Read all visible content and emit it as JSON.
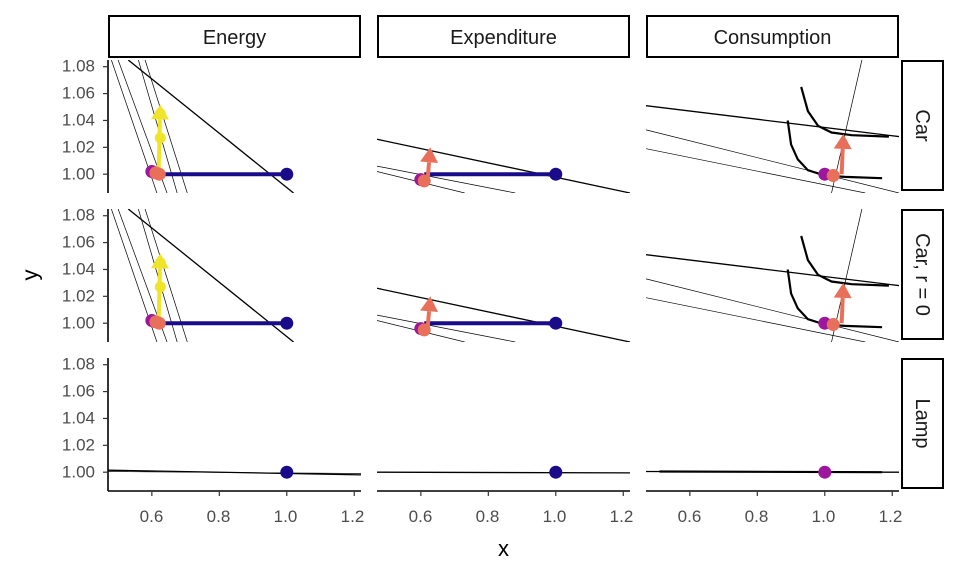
{
  "colors": {
    "navy": "#1a0b8a",
    "purple": "#9c179e",
    "salmon": "#e8705a",
    "yellow": "#f0e42a"
  },
  "chart_data": {
    "type": "scatter",
    "xlabel": "x",
    "ylabel": "y",
    "xlim": [
      0.47,
      1.22
    ],
    "ylim": [
      0.986,
      1.085
    ],
    "x_ticks": [
      0.6,
      0.8,
      1.0,
      1.2
    ],
    "x_tick_labels": [
      "0.6",
      "0.8",
      "1.0",
      "1.2"
    ],
    "y_ticks": [
      1.0,
      1.02,
      1.04,
      1.06,
      1.08
    ],
    "y_tick_labels": [
      "1.00",
      "1.02",
      "1.04",
      "1.06",
      "1.08"
    ],
    "grid": false,
    "facet_columns": [
      "Energy",
      "Expenditure",
      "Consumption"
    ],
    "facet_rows": [
      "Car",
      "Car, r = 0",
      "Lamp"
    ],
    "panels": [
      {
        "col": "Energy",
        "row": "Car",
        "lines": [
          [
            [
              0.53,
              1.085
            ],
            [
              1.02,
              0.986
            ]
          ],
          [
            [
              0.48,
              1.085
            ],
            [
              0.615,
              0.986
            ]
          ],
          [
            [
              0.56,
              1.085
            ],
            [
              0.675,
              0.986
            ]
          ],
          [
            [
              0.58,
              1.085
            ],
            [
              0.705,
              0.986
            ]
          ],
          [
            [
              0.5,
              1.085
            ],
            [
              0.645,
              0.986
            ]
          ]
        ],
        "segments": [
          {
            "from": [
              0.62,
              1.0
            ],
            "to": [
              1.0,
              1.0
            ],
            "color": "navy"
          }
        ],
        "arrows": [
          {
            "from": [
              0.62,
              1.0
            ],
            "to": [
              0.625,
              1.052
            ],
            "color": "yellow"
          }
        ],
        "points": [
          {
            "x": 1.0,
            "y": 1.0,
            "color": "navy"
          },
          {
            "x": 0.6,
            "y": 1.002,
            "color": "purple"
          },
          {
            "x": 0.612,
            "y": 1.001,
            "color": "salmon"
          },
          {
            "x": 0.622,
            "y": 1.0,
            "color": "salmon"
          },
          {
            "x": 0.625,
            "y": 1.027,
            "color": "yellow"
          },
          {
            "x": 0.625,
            "y": 1.045,
            "color": "yellow"
          }
        ]
      },
      {
        "col": "Expenditure",
        "row": "Car",
        "lines": [
          [
            [
              0.47,
              1.026
            ],
            [
              1.22,
              0.986
            ]
          ],
          [
            [
              0.47,
              1.006
            ],
            [
              0.88,
              0.986
            ]
          ],
          [
            [
              0.47,
              1.002
            ],
            [
              0.73,
              0.986
            ]
          ]
        ],
        "segments": [
          {
            "from": [
              0.61,
              1.0
            ],
            "to": [
              1.0,
              1.0
            ],
            "color": "navy"
          }
        ],
        "arrows": [
          {
            "from": [
              0.62,
              0.996
            ],
            "to": [
              0.628,
              1.02
            ],
            "color": "salmon"
          }
        ],
        "points": [
          {
            "x": 1.0,
            "y": 1.0,
            "color": "navy"
          },
          {
            "x": 0.6,
            "y": 0.996,
            "color": "purple"
          },
          {
            "x": 0.61,
            "y": 0.995,
            "color": "salmon"
          }
        ]
      },
      {
        "col": "Consumption",
        "row": "Car",
        "lines": [
          [
            [
              0.47,
              1.051
            ],
            [
              1.22,
              1.028
            ]
          ],
          [
            [
              0.47,
              1.033
            ],
            [
              1.22,
              0.986
            ]
          ],
          [
            [
              0.47,
              1.019
            ],
            [
              1.12,
              0.986
            ]
          ],
          [
            [
              1.02,
              0.986
            ],
            [
              1.11,
              1.085
            ]
          ]
        ],
        "curves": [
          [
            [
              0.93,
              1.065
            ],
            [
              0.95,
              1.047
            ],
            [
              0.98,
              1.036
            ],
            [
              1.02,
              1.031
            ],
            [
              1.08,
              1.029
            ],
            [
              1.19,
              1.028
            ]
          ],
          [
            [
              0.89,
              1.04
            ],
            [
              0.9,
              1.022
            ],
            [
              0.92,
              1.011
            ],
            [
              0.95,
              1.003
            ],
            [
              1.0,
              0.999
            ],
            [
              1.06,
              0.998
            ],
            [
              1.17,
              0.997
            ]
          ]
        ],
        "segments": [],
        "arrows": [
          {
            "from": [
              1.05,
              1.0
            ],
            "to": [
              1.055,
              1.03
            ],
            "color": "salmon"
          }
        ],
        "points": [
          {
            "x": 1.0,
            "y": 1.0,
            "color": "purple"
          },
          {
            "x": 1.025,
            "y": 0.999,
            "color": "salmon"
          }
        ]
      },
      {
        "col": "Energy",
        "row": "Car, r = 0",
        "lines": [
          [
            [
              0.53,
              1.085
            ],
            [
              1.02,
              0.986
            ]
          ],
          [
            [
              0.48,
              1.085
            ],
            [
              0.615,
              0.986
            ]
          ],
          [
            [
              0.56,
              1.085
            ],
            [
              0.675,
              0.986
            ]
          ],
          [
            [
              0.58,
              1.085
            ],
            [
              0.705,
              0.986
            ]
          ],
          [
            [
              0.5,
              1.085
            ],
            [
              0.645,
              0.986
            ]
          ]
        ],
        "segments": [
          {
            "from": [
              0.62,
              1.0
            ],
            "to": [
              1.0,
              1.0
            ],
            "color": "navy"
          }
        ],
        "arrows": [
          {
            "from": [
              0.62,
              1.0
            ],
            "to": [
              0.625,
              1.052
            ],
            "color": "yellow"
          }
        ],
        "points": [
          {
            "x": 1.0,
            "y": 1.0,
            "color": "navy"
          },
          {
            "x": 0.6,
            "y": 1.002,
            "color": "purple"
          },
          {
            "x": 0.612,
            "y": 1.001,
            "color": "salmon"
          },
          {
            "x": 0.622,
            "y": 1.0,
            "color": "salmon"
          },
          {
            "x": 0.625,
            "y": 1.027,
            "color": "yellow"
          },
          {
            "x": 0.625,
            "y": 1.045,
            "color": "yellow"
          }
        ]
      },
      {
        "col": "Expenditure",
        "row": "Car, r = 0",
        "lines": [
          [
            [
              0.47,
              1.026
            ],
            [
              1.22,
              0.986
            ]
          ],
          [
            [
              0.47,
              1.006
            ],
            [
              0.88,
              0.986
            ]
          ],
          [
            [
              0.47,
              1.002
            ],
            [
              0.73,
              0.986
            ]
          ]
        ],
        "segments": [
          {
            "from": [
              0.61,
              1.0
            ],
            "to": [
              1.0,
              1.0
            ],
            "color": "navy"
          }
        ],
        "arrows": [
          {
            "from": [
              0.62,
              0.996
            ],
            "to": [
              0.628,
              1.02
            ],
            "color": "salmon"
          }
        ],
        "points": [
          {
            "x": 1.0,
            "y": 1.0,
            "color": "navy"
          },
          {
            "x": 0.6,
            "y": 0.996,
            "color": "purple"
          },
          {
            "x": 0.61,
            "y": 0.995,
            "color": "salmon"
          }
        ]
      },
      {
        "col": "Consumption",
        "row": "Car, r = 0",
        "lines": [
          [
            [
              0.47,
              1.051
            ],
            [
              1.22,
              1.028
            ]
          ],
          [
            [
              0.47,
              1.033
            ],
            [
              1.22,
              0.986
            ]
          ],
          [
            [
              0.47,
              1.019
            ],
            [
              1.12,
              0.986
            ]
          ],
          [
            [
              1.02,
              0.986
            ],
            [
              1.11,
              1.085
            ]
          ]
        ],
        "curves": [
          [
            [
              0.93,
              1.065
            ],
            [
              0.95,
              1.047
            ],
            [
              0.98,
              1.036
            ],
            [
              1.02,
              1.031
            ],
            [
              1.08,
              1.029
            ],
            [
              1.19,
              1.028
            ]
          ],
          [
            [
              0.89,
              1.04
            ],
            [
              0.9,
              1.022
            ],
            [
              0.92,
              1.011
            ],
            [
              0.95,
              1.003
            ],
            [
              1.0,
              0.999
            ],
            [
              1.06,
              0.998
            ],
            [
              1.17,
              0.997
            ]
          ]
        ],
        "segments": [],
        "arrows": [
          {
            "from": [
              1.05,
              1.0
            ],
            "to": [
              1.055,
              1.03
            ],
            "color": "salmon"
          }
        ],
        "points": [
          {
            "x": 1.0,
            "y": 1.0,
            "color": "purple"
          },
          {
            "x": 1.025,
            "y": 0.999,
            "color": "salmon"
          }
        ]
      },
      {
        "col": "Energy",
        "row": "Lamp",
        "lines": [
          [
            [
              0.47,
              1.0015
            ],
            [
              1.22,
              0.998
            ]
          ],
          [
            [
              0.47,
              1.0005
            ],
            [
              1.22,
              0.999
            ]
          ]
        ],
        "segments": [],
        "arrows": [],
        "points": [
          {
            "x": 1.0,
            "y": 1.0,
            "color": "navy"
          }
        ]
      },
      {
        "col": "Expenditure",
        "row": "Lamp",
        "lines": [
          [
            [
              0.47,
              1.0
            ],
            [
              1.22,
              0.9995
            ]
          ]
        ],
        "segments": [],
        "arrows": [],
        "points": [
          {
            "x": 1.0,
            "y": 1.0,
            "color": "navy"
          }
        ]
      },
      {
        "col": "Consumption",
        "row": "Lamp",
        "lines": [
          [
            [
              0.47,
              1.0005
            ],
            [
              1.22,
              1.0
            ]
          ]
        ],
        "segments": [
          {
            "from": [
              0.51,
              1.0005
            ],
            "to": [
              1.17,
              1.0
            ],
            "color": "black"
          }
        ],
        "arrows": [],
        "points": [
          {
            "x": 1.0,
            "y": 1.0,
            "color": "purple"
          }
        ]
      }
    ]
  }
}
